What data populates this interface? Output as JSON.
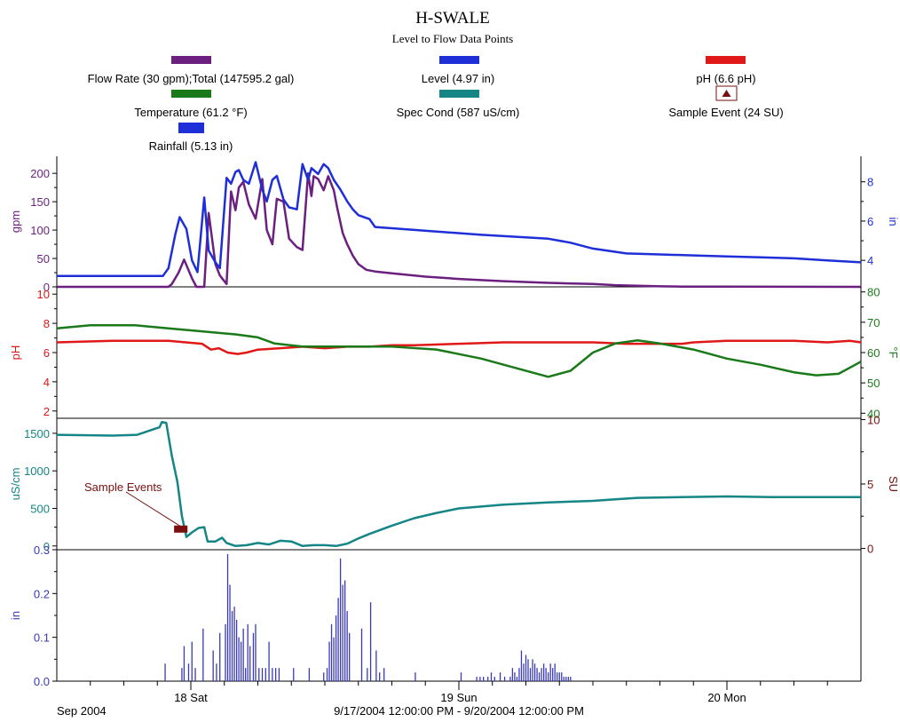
{
  "header": {
    "title": "H-SWALE",
    "subtitle": "Level to Flow Data Points"
  },
  "colors": {
    "flow": "#6b1f7f",
    "level": "#1f2fd8",
    "ph": "#e01818",
    "temperature": "#1a7a1a",
    "spec_cond": "#158585",
    "sample": "#7a0f0f",
    "rain": "#3a3ab8"
  },
  "legend": [
    {
      "id": "flow",
      "label": "Flow Rate (30 gpm);Total (147595.2 gal)",
      "color": "#6b1f7f",
      "icon": "color-swatch"
    },
    {
      "id": "level",
      "label": "Level (4.97 in)",
      "color": "#1f2fd8",
      "icon": "color-swatch"
    },
    {
      "id": "ph",
      "label": "pH (6.6 pH)",
      "color": "#e01818",
      "icon": "color-swatch"
    },
    {
      "id": "temperature",
      "label": "Temperature (61.2 °F)",
      "color": "#1a7a1a",
      "icon": "color-swatch"
    },
    {
      "id": "spec_cond",
      "label": "Spec Cond (587 uS/cm)",
      "color": "#158585",
      "icon": "color-swatch"
    },
    {
      "id": "sample",
      "label": "Sample Event (24 SU)",
      "color": "#7a0f0f",
      "icon": "triangle-marker-icon"
    },
    {
      "id": "rain",
      "label": "Rainfall (5.13 in)",
      "color": "#1f2fd8",
      "icon": "color-swatch"
    }
  ],
  "footer": {
    "period": "Sep 2004",
    "range": "9/17/2004 12:00:00 PM - 9/20/2004 12:00:00 PM"
  },
  "annotation": "Sample Events",
  "chart_data": [
    {
      "type": "line",
      "x_unit": "hours since 9/17/2004 12:00 PM",
      "xlim": [
        0,
        72
      ],
      "xticks": [
        {
          "x": 12,
          "label": "18 Sat"
        },
        {
          "x": 36,
          "label": "19 Sun"
        },
        {
          "x": 60,
          "label": "20 Mon"
        }
      ],
      "ylabel": "gpm",
      "ylim": [
        0,
        230
      ],
      "yticks": [
        0,
        50,
        100,
        150,
        200
      ],
      "y2label": "in",
      "y2lim": [
        2.65,
        9.3
      ],
      "y2ticks": [
        4,
        6,
        8
      ],
      "series": [
        {
          "name": "Flow Rate",
          "axis": "left",
          "x": [
            0,
            10,
            10.3,
            10.9,
            11.4,
            12.1,
            12.5,
            13.2,
            13.6,
            14.2,
            14.6,
            15.2,
            15.6,
            16,
            16.3,
            16.7,
            17.2,
            17.8,
            18.4,
            18.8,
            19.3,
            19.7,
            20.3,
            20.8,
            21.5,
            22,
            22.5,
            22.8,
            23,
            23.4,
            23.9,
            24.3,
            24.8,
            25.1,
            25.6,
            26,
            26.5,
            27,
            27.7,
            28.5,
            30,
            33,
            36,
            40,
            44,
            48,
            50,
            52,
            54,
            56,
            60,
            66,
            72
          ],
          "y": [
            0,
            0,
            5,
            25,
            48,
            15,
            0,
            0,
            130,
            40,
            20,
            5,
            168,
            135,
            175,
            185,
            145,
            120,
            190,
            100,
            75,
            155,
            150,
            85,
            70,
            65,
            200,
            160,
            195,
            190,
            170,
            195,
            170,
            140,
            95,
            75,
            55,
            40,
            30,
            27,
            24,
            18,
            14,
            10,
            7,
            5,
            3,
            2,
            1,
            0.5,
            0.3,
            0.1,
            0
          ]
        },
        {
          "name": "Level",
          "axis": "right",
          "x": [
            0,
            9.5,
            10,
            10.6,
            11,
            11.6,
            12.1,
            12.6,
            13.2,
            13.6,
            14.2,
            14.6,
            15.2,
            15.6,
            16,
            16.3,
            16.7,
            17.2,
            17.8,
            18.4,
            18.8,
            19.3,
            19.7,
            20.3,
            20.8,
            21.5,
            22,
            22.5,
            22.8,
            23,
            23.4,
            23.9,
            24.3,
            24.8,
            25.4,
            26,
            26.5,
            27,
            28,
            28.5,
            32,
            38,
            44,
            46,
            48,
            51,
            54,
            57,
            60,
            63,
            66,
            69,
            72
          ],
          "y": [
            3.2,
            3.2,
            3.6,
            5.3,
            6.2,
            5.6,
            4.0,
            3.4,
            7.2,
            4.5,
            3.9,
            3.6,
            8.2,
            7.9,
            8.5,
            8.6,
            8.1,
            7.9,
            9.0,
            7.6,
            7.0,
            8.1,
            8.3,
            7.1,
            6.7,
            6.6,
            8.9,
            8.1,
            8.7,
            8.6,
            8.4,
            8.9,
            8.7,
            8.1,
            7.6,
            7.0,
            6.6,
            6.3,
            6.1,
            5.7,
            5.55,
            5.3,
            5.1,
            4.9,
            4.6,
            4.35,
            4.3,
            4.25,
            4.2,
            4.15,
            4.1,
            4.0,
            3.9
          ]
        }
      ]
    },
    {
      "type": "line",
      "x_unit": "hours since 9/17/2004 12:00 PM",
      "xlim": [
        0,
        72
      ],
      "ylabel": "pH",
      "ylim": [
        1.5,
        10.5
      ],
      "yticks": [
        2,
        4,
        6,
        8,
        10
      ],
      "y2label": "°F",
      "y2lim": [
        38.33,
        81.67
      ],
      "y2ticks": [
        40,
        50,
        60,
        70,
        80
      ],
      "series": [
        {
          "name": "pH",
          "axis": "left",
          "x": [
            0,
            5,
            10,
            13,
            13.8,
            14.5,
            15.3,
            16.2,
            17,
            18,
            20,
            22,
            24,
            26,
            28,
            30,
            32,
            36,
            40,
            44,
            48,
            51,
            54,
            56,
            57,
            60,
            63,
            66,
            69,
            71,
            72
          ],
          "y": [
            6.7,
            6.8,
            6.8,
            6.6,
            6.2,
            6.3,
            6.0,
            5.9,
            6.0,
            6.2,
            6.3,
            6.4,
            6.3,
            6.4,
            6.4,
            6.5,
            6.5,
            6.6,
            6.7,
            6.7,
            6.7,
            6.6,
            6.6,
            6.6,
            6.7,
            6.8,
            6.8,
            6.8,
            6.7,
            6.8,
            6.7
          ]
        },
        {
          "name": "Temperature",
          "axis": "right",
          "x": [
            0,
            3,
            7,
            10,
            13,
            16,
            18,
            19.5,
            22,
            26,
            30,
            34,
            38,
            41,
            44,
            46,
            48,
            50,
            52,
            54,
            57,
            60,
            63,
            66,
            68,
            70,
            71.5,
            72
          ],
          "y": [
            68,
            69,
            69,
            68,
            67,
            66,
            65,
            63,
            62,
            62,
            62,
            61,
            58,
            55,
            52,
            54,
            60,
            63,
            64,
            63,
            61,
            58,
            56,
            53.5,
            52.5,
            53,
            56,
            57
          ]
        }
      ]
    },
    {
      "type": "line",
      "x_unit": "hours since 9/17/2004 12:00 PM",
      "xlim": [
        0,
        72
      ],
      "ylabel": "uS/cm",
      "ylim": [
        -50,
        1700
      ],
      "yticks": [
        0,
        500,
        1000,
        1500
      ],
      "y2label": "SU",
      "y2lim": [
        -0.1,
        10.1
      ],
      "y2ticks": [
        0,
        5,
        10
      ],
      "series": [
        {
          "name": "Spec Cond",
          "axis": "left",
          "x": [
            0,
            5,
            7.2,
            9.2,
            9.4,
            9.8,
            10.3,
            10.8,
            11.2,
            11.6,
            12.1,
            12.7,
            13.2,
            13.5,
            14.2,
            14.8,
            15.2,
            16,
            17,
            18,
            19,
            20,
            21,
            22,
            23,
            24,
            25,
            26,
            27,
            28,
            30,
            32,
            34,
            36,
            40,
            44,
            48,
            50,
            52,
            56,
            60,
            64,
            68,
            72
          ],
          "y": [
            1480,
            1470,
            1480,
            1580,
            1650,
            1640,
            1200,
            850,
            400,
            120,
            180,
            240,
            250,
            60,
            60,
            110,
            40,
            0,
            10,
            40,
            20,
            70,
            60,
            0,
            10,
            10,
            0,
            30,
            100,
            160,
            270,
            370,
            440,
            500,
            550,
            580,
            600,
            620,
            640,
            650,
            660,
            650,
            650,
            650
          ]
        }
      ],
      "sample_events": {
        "x": [
          10.5,
          11.7
        ],
        "y": 1.5
      }
    },
    {
      "type": "bar",
      "x_unit": "hours since 9/17/2004 12:00 PM",
      "xlim": [
        0,
        72
      ],
      "ylabel": "in",
      "ylim": [
        0,
        0.3
      ],
      "yticks": [
        0.0,
        0.1,
        0.2,
        0.3
      ],
      "yticklabels": [
        "0.0",
        "0.1",
        "0.2",
        "0.3"
      ],
      "series": [
        {
          "name": "Rainfall",
          "x": [
            9.7,
            11.2,
            11.4,
            11.8,
            12.1,
            12.4,
            13.1,
            14.0,
            14.3,
            14.6,
            15.1,
            15.3,
            15.5,
            15.7,
            15.9,
            16.1,
            16.3,
            16.5,
            16.7,
            16.9,
            17.1,
            17.3,
            17.6,
            17.8,
            18.1,
            18.4,
            18.7,
            19.0,
            19.3,
            19.6,
            19.9,
            21.2,
            22.6,
            23.9,
            24.2,
            24.4,
            24.6,
            24.8,
            25.0,
            25.2,
            25.4,
            25.6,
            25.8,
            26.0,
            26.2,
            27.3,
            27.8,
            28.1,
            28.6,
            28.9,
            29.3,
            32.1,
            36.2,
            37.6,
            37.9,
            38.2,
            38.6,
            38.9,
            39.2,
            39.7,
            40.1,
            40.6,
            40.8,
            41.0,
            41.2,
            41.4,
            41.6,
            41.8,
            42.0,
            42.2,
            42.4,
            42.6,
            42.8,
            43.0,
            43.2,
            43.4,
            43.6,
            43.8,
            44.0,
            44.2,
            44.4,
            44.6,
            44.8,
            45.0,
            45.2,
            45.4,
            45.6,
            45.8,
            46.0
          ],
          "y": [
            0.04,
            0.03,
            0.08,
            0.04,
            0.09,
            0.03,
            0.12,
            0.07,
            0.04,
            0.11,
            0.13,
            0.29,
            0.22,
            0.16,
            0.17,
            0.14,
            0.1,
            0.09,
            0.12,
            0.03,
            0.13,
            0.08,
            0.11,
            0.13,
            0.03,
            0.03,
            0.03,
            0.09,
            0.03,
            0.03,
            0.03,
            0.03,
            0.03,
            0.02,
            0.03,
            0.09,
            0.13,
            0.1,
            0.15,
            0.19,
            0.28,
            0.22,
            0.23,
            0.16,
            0.11,
            0.12,
            0.03,
            0.18,
            0.07,
            0.02,
            0.03,
            0.02,
            0.02,
            0.01,
            0.01,
            0.01,
            0.01,
            0.02,
            0.01,
            0.02,
            0.01,
            0.01,
            0.03,
            0.02,
            0.01,
            0.03,
            0.07,
            0.04,
            0.06,
            0.05,
            0.03,
            0.05,
            0.04,
            0.03,
            0.02,
            0.03,
            0.04,
            0.03,
            0.02,
            0.04,
            0.03,
            0.04,
            0.02,
            0.02,
            0.02,
            0.01,
            0.01,
            0.01,
            0.01
          ]
        }
      ]
    }
  ]
}
